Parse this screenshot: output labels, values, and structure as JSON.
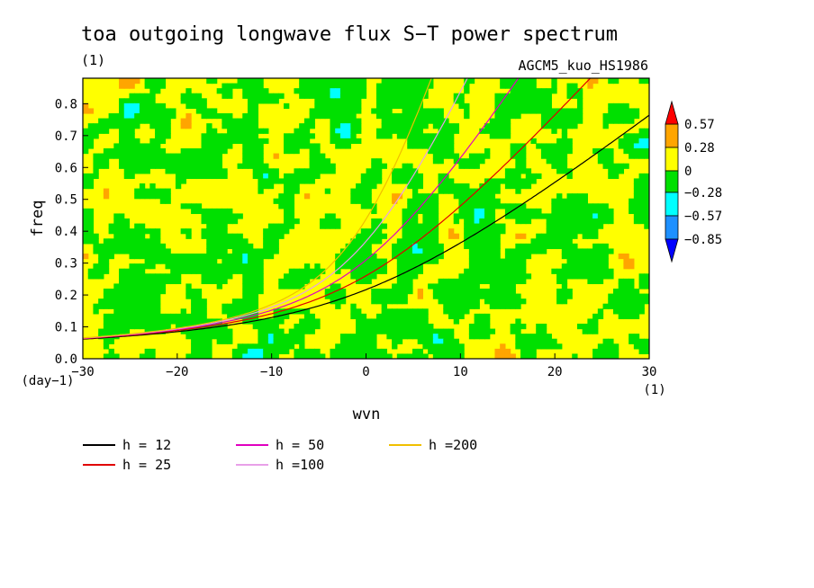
{
  "chart_data": {
    "type": "heatmap",
    "title": "toa outgoing longwave flux S−T power spectrum",
    "units": "(1)",
    "model_label": "AGCM5_kuo_HS1986",
    "xlabel": "wvn",
    "ylabel": "freq",
    "x_unit": "(1)",
    "y_unit": "(day−1)",
    "xlim": [
      -30,
      30
    ],
    "ylim": [
      0.0,
      0.88
    ],
    "x_ticks": [
      "−30",
      "−20",
      "−10",
      "0",
      "10",
      "20",
      "30"
    ],
    "y_ticks": [
      "0.0",
      "0.1",
      "0.2",
      "0.3",
      "0.4",
      "0.5",
      "0.6",
      "0.7",
      "0.8"
    ],
    "colorbar": {
      "labels": [
        "0.57",
        "0.28",
        "0",
        "−0.28",
        "−0.57",
        "−0.85"
      ],
      "colors": [
        "#ff0000",
        "#ffa500",
        "#ffff00",
        "#00e000",
        "#00ffff",
        "#1e90ff",
        "#0000ff"
      ]
    },
    "field_note": "noisy normalized spectrum mostly between −0.28 and 0.28",
    "series": [
      {
        "name": "h = 12",
        "h": 12,
        "color": "#000000"
      },
      {
        "name": "h = 25",
        "h": 25,
        "color": "#e00000"
      },
      {
        "name": "h = 50",
        "h": 50,
        "color": "#e000c0"
      },
      {
        "name": "h =100",
        "h": 100,
        "color": "#e8a0e8"
      },
      {
        "name": "h =200",
        "h": 200,
        "color": "#f0c000"
      }
    ]
  }
}
